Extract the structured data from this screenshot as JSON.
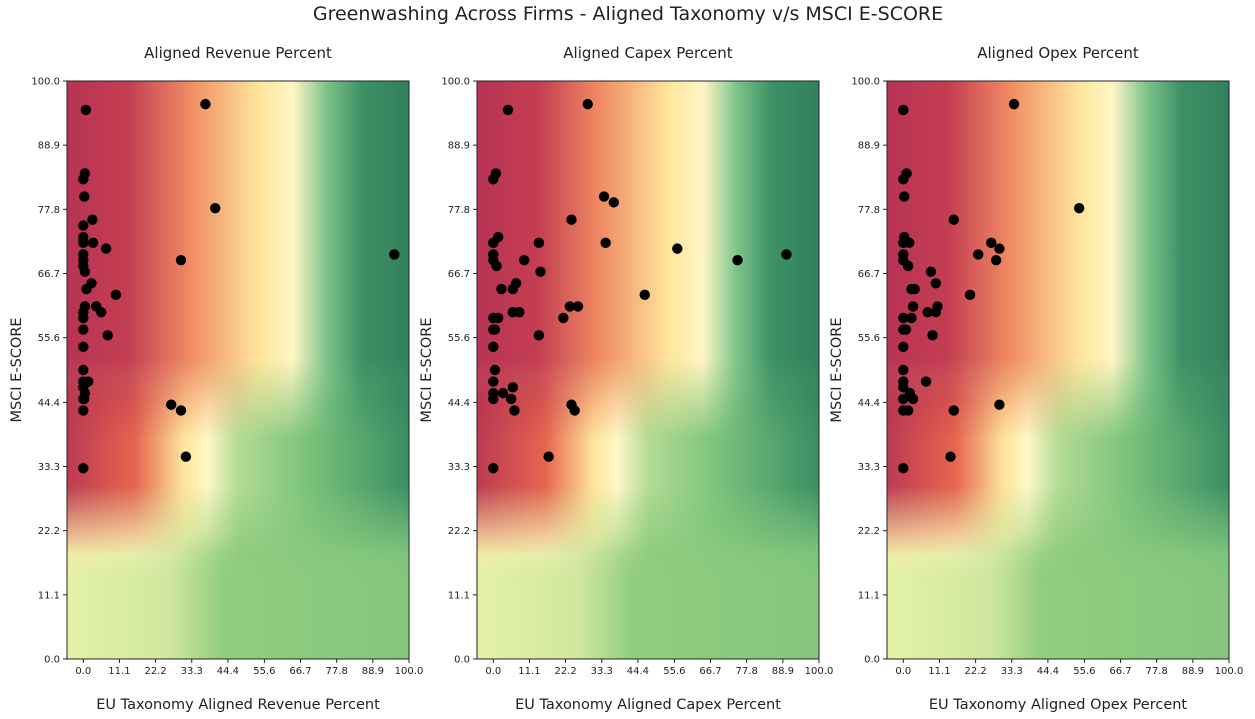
{
  "figure": {
    "title": "Greenwashing Across Firms - Aligned Taxonomy v/s MSCI E-SCORE"
  },
  "colors": {
    "heat_low": "#b83354",
    "heat_mid": "#fff6c4",
    "heat_high": "#3a8b63",
    "marker": "#000000"
  },
  "chart_data": [
    {
      "type": "scatter",
      "title": "Aligned Revenue Percent",
      "xlabel": "EU Taxonomy Aligned Revenue Percent",
      "ylabel": "MSCI E-SCORE",
      "xlim": [
        -5,
        100
      ],
      "ylim": [
        0,
        100
      ],
      "xticks": [
        "0.0",
        "11.1",
        "22.2",
        "33.3",
        "44.4",
        "55.6",
        "66.7",
        "77.8",
        "88.9",
        "100.0"
      ],
      "yticks": [
        "0.0",
        "11.1",
        "22.2",
        "33.3",
        "44.4",
        "55.6",
        "66.7",
        "77.8",
        "88.9",
        "100.0"
      ],
      "background": "heatmap red-yellow-green gradient",
      "grid": false,
      "points": [
        [
          0.8,
          95
        ],
        [
          37.5,
          96
        ],
        [
          0,
          83
        ],
        [
          0.5,
          84
        ],
        [
          0.3,
          80
        ],
        [
          0,
          75
        ],
        [
          40.5,
          78
        ],
        [
          2.8,
          76
        ],
        [
          0,
          73
        ],
        [
          0,
          72
        ],
        [
          3,
          72
        ],
        [
          7,
          71
        ],
        [
          0,
          70
        ],
        [
          0,
          69
        ],
        [
          30,
          69
        ],
        [
          95.5,
          70
        ],
        [
          0,
          68
        ],
        [
          0.5,
          67
        ],
        [
          2.5,
          65
        ],
        [
          1,
          64
        ],
        [
          10,
          63
        ],
        [
          0.5,
          61
        ],
        [
          4,
          61
        ],
        [
          5.5,
          60
        ],
        [
          0,
          60
        ],
        [
          0,
          59
        ],
        [
          0,
          57
        ],
        [
          7.5,
          56
        ],
        [
          0,
          54
        ],
        [
          0,
          50
        ],
        [
          0,
          48
        ],
        [
          1.5,
          48
        ],
        [
          0,
          47
        ],
        [
          0.5,
          46
        ],
        [
          0,
          45
        ],
        [
          0.3,
          45
        ],
        [
          27,
          44
        ],
        [
          30,
          43
        ],
        [
          0,
          43
        ],
        [
          31.5,
          35
        ],
        [
          0,
          33
        ]
      ]
    },
    {
      "type": "scatter",
      "title": "Aligned Capex Percent",
      "xlabel": "EU Taxonomy Aligned Capex Percent",
      "ylabel": "MSCI E-SCORE",
      "xlim": [
        -5,
        100
      ],
      "ylim": [
        0,
        100
      ],
      "xticks": [
        "0.0",
        "11.1",
        "22.2",
        "33.3",
        "44.4",
        "55.6",
        "66.7",
        "77.8",
        "88.9",
        "100.0"
      ],
      "yticks": [
        "0.0",
        "11.1",
        "22.2",
        "33.3",
        "44.4",
        "55.6",
        "66.7",
        "77.8",
        "88.9",
        "100.0"
      ],
      "background": "heatmap red-yellow-green gradient",
      "grid": false,
      "points": [
        [
          4.5,
          95
        ],
        [
          29,
          96
        ],
        [
          0,
          83
        ],
        [
          0.8,
          84
        ],
        [
          34,
          80
        ],
        [
          37,
          79
        ],
        [
          24,
          76
        ],
        [
          1.5,
          73
        ],
        [
          0,
          72
        ],
        [
          14,
          72
        ],
        [
          34.5,
          72
        ],
        [
          56.5,
          71
        ],
        [
          0,
          70
        ],
        [
          0,
          69
        ],
        [
          9.5,
          69
        ],
        [
          75,
          69
        ],
        [
          90,
          70
        ],
        [
          1,
          68
        ],
        [
          14.5,
          67
        ],
        [
          7,
          65
        ],
        [
          2.5,
          64
        ],
        [
          6,
          64
        ],
        [
          46.5,
          63
        ],
        [
          23.5,
          61
        ],
        [
          26,
          61
        ],
        [
          6,
          60
        ],
        [
          8,
          60
        ],
        [
          0,
          59
        ],
        [
          1.5,
          59
        ],
        [
          21.5,
          59
        ],
        [
          0,
          57
        ],
        [
          0.5,
          57
        ],
        [
          14,
          56
        ],
        [
          0,
          54
        ],
        [
          0.5,
          50
        ],
        [
          0,
          48
        ],
        [
          6,
          47
        ],
        [
          0,
          46
        ],
        [
          3,
          46
        ],
        [
          0,
          45
        ],
        [
          5.5,
          45
        ],
        [
          24,
          44
        ],
        [
          6.5,
          43
        ],
        [
          25,
          43
        ],
        [
          17,
          35
        ],
        [
          0,
          33
        ]
      ]
    },
    {
      "type": "scatter",
      "title": "Aligned Opex Percent",
      "xlabel": "EU Taxonomy Aligned Opex Percent",
      "ylabel": "MSCI E-SCORE",
      "xlim": [
        -5,
        100
      ],
      "ylim": [
        0,
        100
      ],
      "xticks": [
        "0.0",
        "11.1",
        "22.2",
        "33.3",
        "44.4",
        "55.6",
        "66.7",
        "77.8",
        "88.9",
        "100.0"
      ],
      "yticks": [
        "0.0",
        "11.1",
        "22.2",
        "33.3",
        "44.4",
        "55.6",
        "66.7",
        "77.8",
        "88.9",
        "100.0"
      ],
      "background": "heatmap red-yellow-green gradient",
      "grid": false,
      "points": [
        [
          0,
          95
        ],
        [
          34,
          96
        ],
        [
          0,
          83
        ],
        [
          1,
          84
        ],
        [
          0.3,
          80
        ],
        [
          15.5,
          76
        ],
        [
          54,
          78
        ],
        [
          0.3,
          73
        ],
        [
          0,
          72
        ],
        [
          1.8,
          72
        ],
        [
          27,
          72
        ],
        [
          29.5,
          71
        ],
        [
          0,
          70
        ],
        [
          0,
          69
        ],
        [
          23,
          70
        ],
        [
          28.5,
          69
        ],
        [
          1.5,
          68
        ],
        [
          8.5,
          67
        ],
        [
          10,
          65
        ],
        [
          2.5,
          64
        ],
        [
          3.5,
          64
        ],
        [
          20.5,
          63
        ],
        [
          3,
          61
        ],
        [
          10.5,
          61
        ],
        [
          7.5,
          60
        ],
        [
          10,
          60
        ],
        [
          0,
          59
        ],
        [
          2.5,
          59
        ],
        [
          0,
          57
        ],
        [
          0.8,
          57
        ],
        [
          9,
          56
        ],
        [
          0,
          54
        ],
        [
          0,
          50
        ],
        [
          0,
          48
        ],
        [
          7,
          48
        ],
        [
          0,
          47
        ],
        [
          2,
          46
        ],
        [
          0,
          45
        ],
        [
          3,
          45
        ],
        [
          0,
          43
        ],
        [
          1.5,
          43
        ],
        [
          15.5,
          43
        ],
        [
          29.5,
          44
        ],
        [
          14.5,
          35
        ],
        [
          0,
          33
        ]
      ]
    }
  ]
}
